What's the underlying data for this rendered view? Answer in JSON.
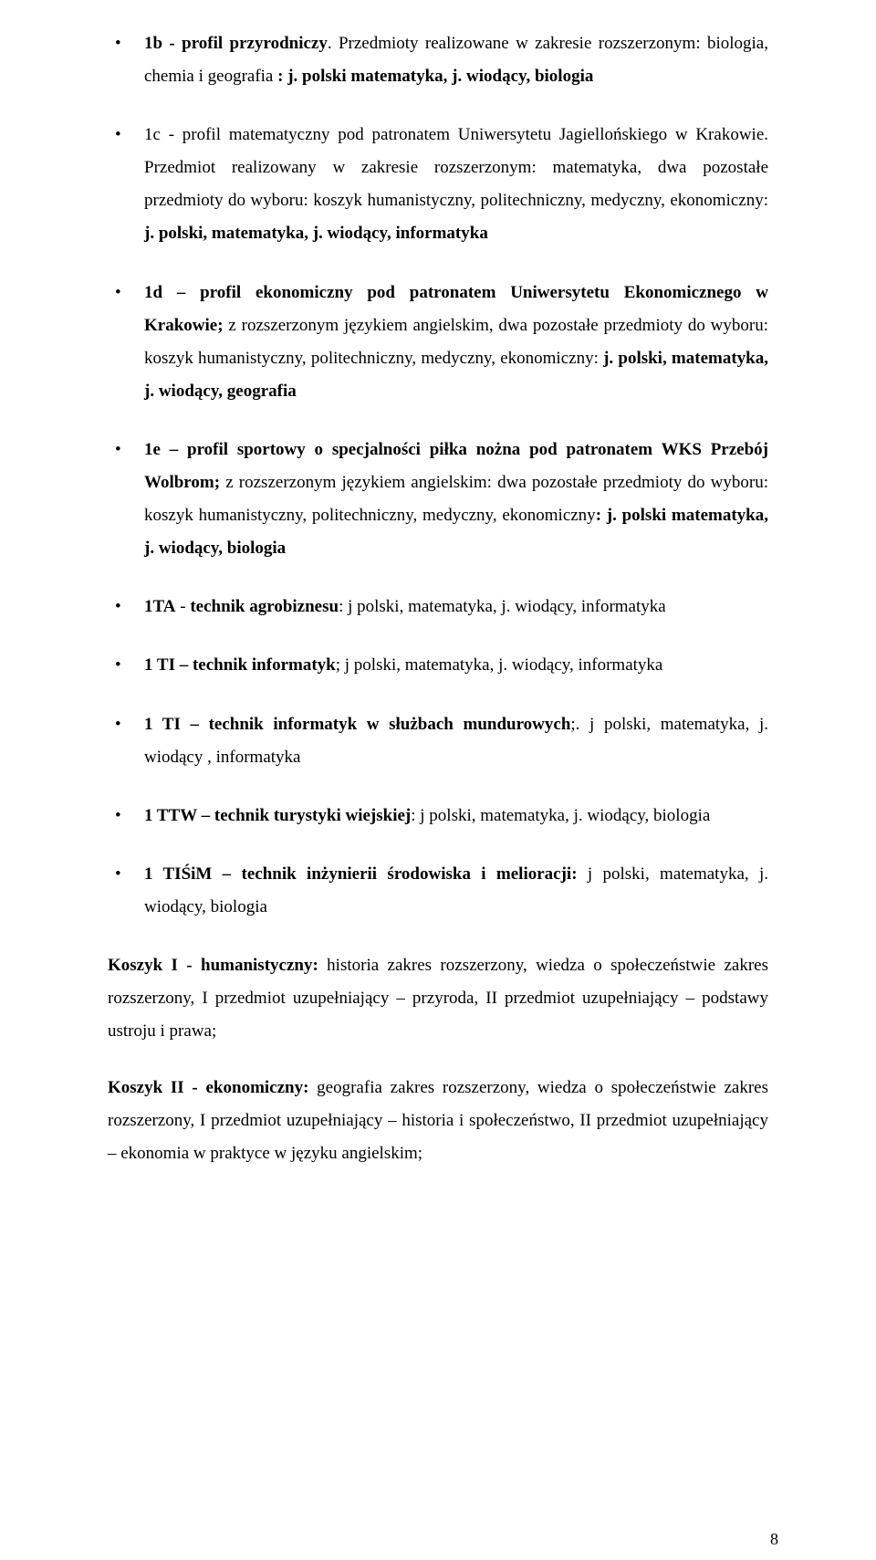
{
  "bullets": [
    {
      "b1": "1b - profil przyrodniczy",
      "t1": ". Przedmioty realizowane w zakresie rozszerzonym: biologia, chemia i geografia",
      "b2": " : j. polski matematyka,  j. wiodący, biologia"
    },
    {
      "t1": "1c - profil matematyczny pod patronatem Uniwersytetu Jagiellońskiego w Krakowie.",
      "t2": " Przedmiot realizowany w zakresie rozszerzonym: matematyka, dwa pozostałe przedmioty do wyboru: koszyk humanistyczny, politechniczny, medyczny, ekonomiczny: ",
      "b2": "j. polski, matematyka, j. wiodący,  informatyka"
    },
    {
      "b1": "1d – profil ekonomiczny pod patronatem Uniwersytetu Ekonomicznego w Krakowie;",
      "t1": " z rozszerzonym  językiem  angielskim, dwa pozostałe przedmioty do wyboru: koszyk humanistyczny, politechniczny, medyczny, ekonomiczny:",
      "b2": " j. polski, matematyka,  j. wiodący, geografia"
    },
    {
      "b1": "1e – profil sportowy o specjalności piłka nożna pod patronatem WKS Przebój Wolbrom;",
      "t1": " z rozszerzonym  językiem  angielskim: dwa pozostałe przedmioty do wyboru: koszyk humanistyczny, politechniczny, medyczny, ekonomiczny",
      "b2": ": j. polski matematyka,  j. wiodący, biologia"
    },
    {
      "b1": "1TA",
      "t1": " - ",
      "b2": "technik agrobiznesu",
      "t2": ": j polski, matematyka,  j. wiodący, informatyka"
    },
    {
      "b1": "1 TI – technik informatyk",
      "t1": ";  j polski, matematyka,  j. wiodący, informatyka"
    },
    {
      "b1": "1 TI – technik informatyk w służbach mundurowych",
      "t1": ";. j polski, matematyka, j. wiodący , informatyka"
    },
    {
      "b1": "1 TTW –  technik turystyki wiejskiej",
      "t1": ":  j polski, matematyka,  j. wiodący, biologia"
    },
    {
      "b1": "1 TIŚiM – technik inżynierii środowiska i melioracji:",
      "t1": "  j polski, matematyka, j. wiodący, biologia"
    }
  ],
  "p1": {
    "b1": "Koszyk I -  humanistyczny:",
    "t1": " historia zakres rozszerzony, wiedza o społeczeństwie zakres rozszerzony, I przedmiot uzupełniający – przyroda, II przedmiot uzupełniający – podstawy ustroju i prawa;"
  },
  "p2": {
    "b1": "Koszyk  II -  ekonomiczny:",
    "t1": " geografia zakres rozszerzony, wiedza o społeczeństwie zakres rozszerzony, I przedmiot uzupełniający – historia i społeczeństwo, II przedmiot uzupełniający – ekonomia w praktyce w języku angielskim;"
  },
  "pageNumber": "8"
}
